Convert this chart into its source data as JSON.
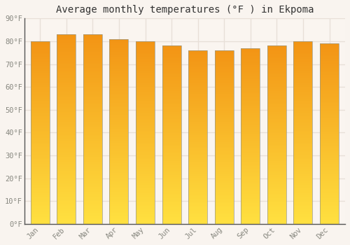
{
  "title": "Average monthly temperatures (°F ) in Ekpoma",
  "months": [
    "Jan",
    "Feb",
    "Mar",
    "Apr",
    "May",
    "Jun",
    "Jul",
    "Aug",
    "Sep",
    "Oct",
    "Nov",
    "Dec"
  ],
  "values": [
    80,
    83,
    83,
    81,
    80,
    78,
    76,
    76,
    77,
    78,
    80,
    79
  ],
  "bar_color_center": "#FFA500",
  "bar_color_bottom": "#FFD040",
  "bar_color_top": "#E8900A",
  "bar_edge_color": "#B8860B",
  "ylim": [
    0,
    90
  ],
  "yticks": [
    0,
    10,
    20,
    30,
    40,
    50,
    60,
    70,
    80,
    90
  ],
  "ytick_labels": [
    "0°F",
    "10°F",
    "20°F",
    "30°F",
    "40°F",
    "50°F",
    "60°F",
    "70°F",
    "80°F",
    "90°F"
  ],
  "background_color": "#f9f4ef",
  "plot_bg_color": "#faf5f0",
  "grid_color": "#e8e0d8",
  "title_fontsize": 10,
  "tick_fontsize": 7.5,
  "font_family": "monospace"
}
